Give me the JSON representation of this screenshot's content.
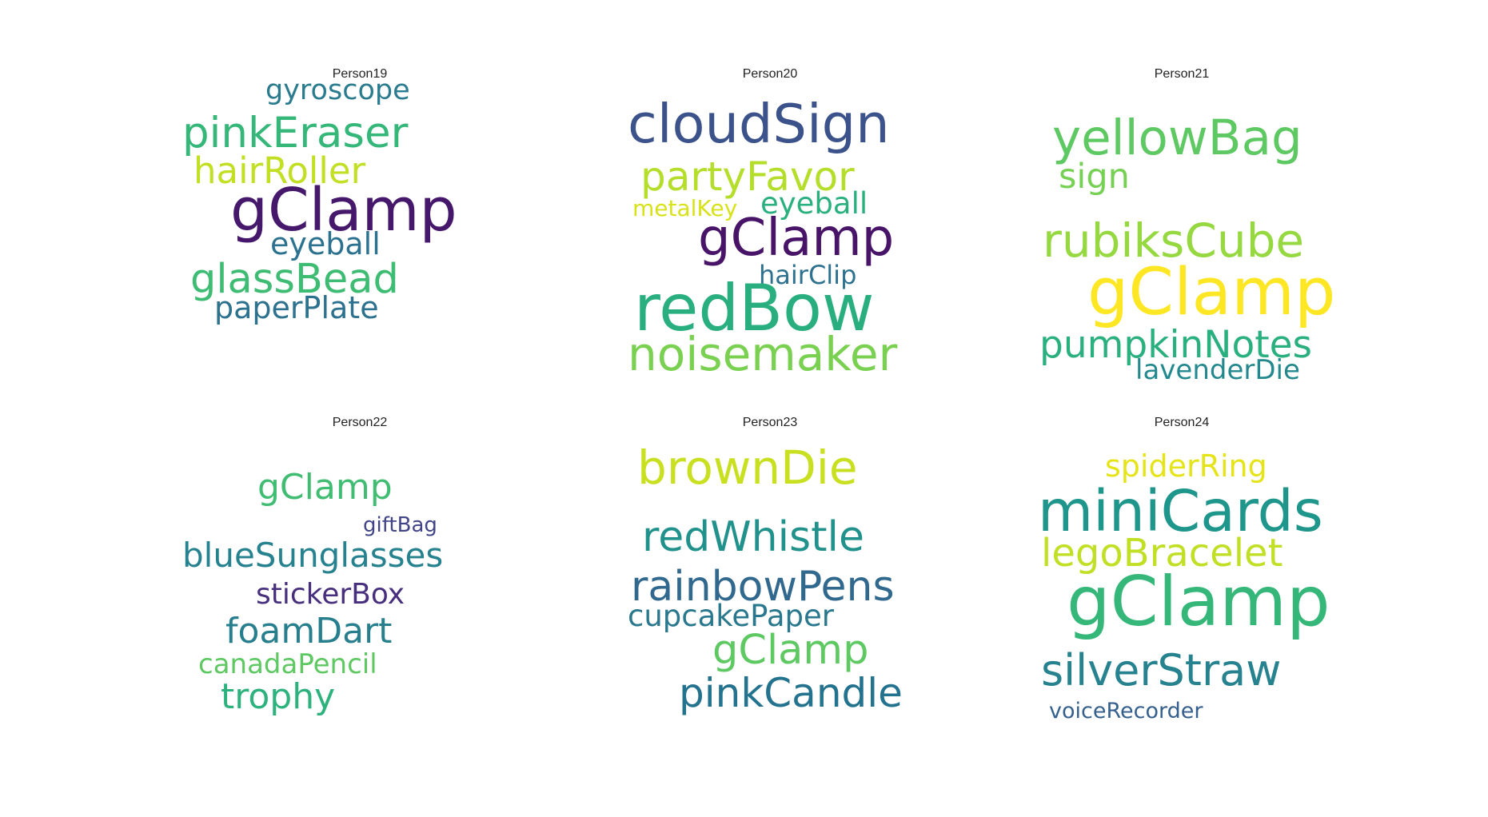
{
  "panels": [
    {
      "title": "Person19",
      "words": [
        {
          "text": "gyroscope",
          "color": "#2a7b8e"
        },
        {
          "text": "pinkEraser",
          "color": "#35b779"
        },
        {
          "text": "hairRoller",
          "color": "#c2df23"
        },
        {
          "text": "gClamp",
          "color": "#46186b"
        },
        {
          "text": "eyeball",
          "color": "#2c728e"
        },
        {
          "text": "glassBead",
          "color": "#3fbc73"
        },
        {
          "text": "paperPlate",
          "color": "#2c718e"
        }
      ]
    },
    {
      "title": "Person20",
      "words": [
        {
          "text": "cloudSign",
          "color": "#3b528b"
        },
        {
          "text": "partyFavor",
          "color": "#b5de2b"
        },
        {
          "text": "metalKey",
          "color": "#d8e219"
        },
        {
          "text": "eyeball",
          "color": "#2ab07f"
        },
        {
          "text": "gClamp",
          "color": "#481467"
        },
        {
          "text": "hairClip",
          "color": "#2d718e"
        },
        {
          "text": "redBow",
          "color": "#29af7f"
        },
        {
          "text": "noisemaker",
          "color": "#7ad151"
        }
      ]
    },
    {
      "title": "Person21",
      "words": [
        {
          "text": "yellowBag",
          "color": "#5ec962"
        },
        {
          "text": "sign",
          "color": "#75d054"
        },
        {
          "text": "rubiksCube",
          "color": "#95d840"
        },
        {
          "text": "gClamp",
          "color": "#fde725"
        },
        {
          "text": "pumpkinNotes",
          "color": "#2ab07f"
        },
        {
          "text": "lavenderDie",
          "color": "#23898e"
        }
      ]
    },
    {
      "title": "Person22",
      "words": [
        {
          "text": "gClamp",
          "color": "#40bd72"
        },
        {
          "text": "giftBag",
          "color": "#414487"
        },
        {
          "text": "blueSunglasses",
          "color": "#26828e"
        },
        {
          "text": "stickerBox",
          "color": "#472f7d"
        },
        {
          "text": "foamDart",
          "color": "#277f8e"
        },
        {
          "text": "canadaPencil",
          "color": "#5ec962"
        },
        {
          "text": "trophy",
          "color": "#2db27d"
        }
      ]
    },
    {
      "title": "Person23",
      "words": [
        {
          "text": "brownDie",
          "color": "#c8e020"
        },
        {
          "text": "redWhistle",
          "color": "#21918c"
        },
        {
          "text": "rainbowPens",
          "color": "#31688e"
        },
        {
          "text": "cupcakePaper",
          "color": "#2a788e"
        },
        {
          "text": "gClamp",
          "color": "#5ec962"
        },
        {
          "text": "pinkCandle",
          "color": "#23728e"
        }
      ]
    },
    {
      "title": "Person24",
      "words": [
        {
          "text": "spiderRing",
          "color": "#e5e419"
        },
        {
          "text": "miniCards",
          "color": "#1f968b"
        },
        {
          "text": "legoBracelet",
          "color": "#c0df25"
        },
        {
          "text": "gClamp",
          "color": "#35b779"
        },
        {
          "text": "silverStraw",
          "color": "#26828e"
        },
        {
          "text": "voiceRecorder",
          "color": "#355f8d"
        }
      ]
    }
  ]
}
